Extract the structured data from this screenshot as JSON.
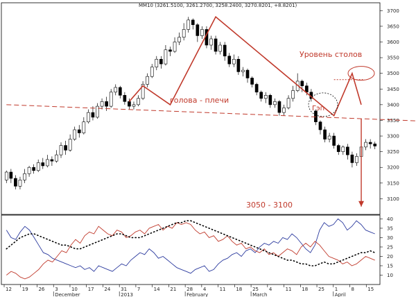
{
  "chart_data": [
    {
      "type": "candlestick",
      "header": "MM10 (3261.5100, 3261.2700, 3258.2400, 3270.8201, +8.8201)",
      "ylim": [
        3050,
        3725
      ],
      "y_ticks": [
        3100,
        3150,
        3200,
        3250,
        3300,
        3350,
        3400,
        3450,
        3500,
        3550,
        3600,
        3650,
        3700
      ],
      "candles": [
        [
          3160,
          3185,
          3150,
          3190
        ],
        [
          3185,
          3165,
          3150,
          3195
        ],
        [
          3165,
          3140,
          3130,
          3175
        ],
        [
          3140,
          3160,
          3130,
          3170
        ],
        [
          3160,
          3180,
          3150,
          3195
        ],
        [
          3180,
          3200,
          3170,
          3205
        ],
        [
          3200,
          3190,
          3180,
          3210
        ],
        [
          3190,
          3215,
          3185,
          3225
        ],
        [
          3215,
          3205,
          3195,
          3230
        ],
        [
          3205,
          3225,
          3200,
          3240
        ],
        [
          3225,
          3220,
          3205,
          3235
        ],
        [
          3220,
          3240,
          3215,
          3255
        ],
        [
          3240,
          3270,
          3230,
          3280
        ],
        [
          3270,
          3255,
          3240,
          3285
        ],
        [
          3255,
          3290,
          3250,
          3305
        ],
        [
          3290,
          3320,
          3285,
          3330
        ],
        [
          3320,
          3310,
          3295,
          3335
        ],
        [
          3310,
          3345,
          3305,
          3360
        ],
        [
          3345,
          3375,
          3340,
          3385
        ],
        [
          3375,
          3360,
          3350,
          3395
        ],
        [
          3360,
          3395,
          3355,
          3405
        ],
        [
          3395,
          3410,
          3385,
          3420
        ],
        [
          3410,
          3395,
          3380,
          3425
        ],
        [
          3395,
          3440,
          3390,
          3450
        ],
        [
          3440,
          3455,
          3430,
          3465
        ],
        [
          3455,
          3430,
          3420,
          3460
        ],
        [
          3430,
          3410,
          3400,
          3440
        ],
        [
          3410,
          3395,
          3385,
          3420
        ],
        [
          3395,
          3400,
          3385,
          3410
        ],
        [
          3400,
          3420,
          3395,
          3430
        ],
        [
          3420,
          3465,
          3415,
          3475
        ],
        [
          3465,
          3490,
          3455,
          3500
        ],
        [
          3490,
          3520,
          3485,
          3530
        ],
        [
          3520,
          3545,
          3510,
          3555
        ],
        [
          3545,
          3530,
          3515,
          3555
        ],
        [
          3530,
          3575,
          3525,
          3590
        ],
        [
          3575,
          3570,
          3555,
          3585
        ],
        [
          3570,
          3600,
          3565,
          3615
        ],
        [
          3600,
          3615,
          3590,
          3630
        ],
        [
          3615,
          3640,
          3605,
          3660
        ],
        [
          3640,
          3670,
          3630,
          3680
        ],
        [
          3670,
          3655,
          3640,
          3675
        ],
        [
          3655,
          3620,
          3600,
          3660
        ],
        [
          3620,
          3640,
          3610,
          3650
        ],
        [
          3640,
          3590,
          3580,
          3650
        ],
        [
          3590,
          3610,
          3575,
          3620
        ],
        [
          3610,
          3570,
          3560,
          3620
        ],
        [
          3570,
          3590,
          3560,
          3600
        ],
        [
          3590,
          3555,
          3540,
          3600
        ],
        [
          3555,
          3530,
          3520,
          3565
        ],
        [
          3530,
          3545,
          3520,
          3560
        ],
        [
          3545,
          3505,
          3495,
          3555
        ],
        [
          3505,
          3510,
          3490,
          3520
        ],
        [
          3510,
          3485,
          3470,
          3515
        ],
        [
          3485,
          3465,
          3455,
          3490
        ],
        [
          3465,
          3440,
          3430,
          3470
        ],
        [
          3440,
          3420,
          3410,
          3445
        ],
        [
          3420,
          3430,
          3405,
          3440
        ],
        [
          3430,
          3400,
          3390,
          3435
        ],
        [
          3400,
          3410,
          3390,
          3420
        ],
        [
          3410,
          3375,
          3365,
          3415
        ],
        [
          3375,
          3390,
          3365,
          3400
        ],
        [
          3390,
          3420,
          3385,
          3430
        ],
        [
          3420,
          3445,
          3410,
          3460
        ],
        [
          3445,
          3475,
          3440,
          3500
        ],
        [
          3475,
          3460,
          3440,
          3480
        ],
        [
          3460,
          3440,
          3430,
          3470
        ],
        [
          3440,
          3420,
          3410,
          3450
        ],
        [
          3380,
          3345,
          3335,
          3385
        ],
        [
          3345,
          3320,
          3305,
          3350
        ],
        [
          3320,
          3290,
          3280,
          3330
        ],
        [
          3290,
          3300,
          3280,
          3310
        ],
        [
          3300,
          3270,
          3260,
          3310
        ],
        [
          3270,
          3250,
          3240,
          3275
        ],
        [
          3250,
          3265,
          3240,
          3270
        ],
        [
          3265,
          3240,
          3225,
          3275
        ],
        [
          3240,
          3215,
          3200,
          3250
        ],
        [
          3215,
          3235,
          3205,
          3245
        ],
        [
          3235,
          3265,
          3225,
          3275
        ],
        [
          3265,
          3280,
          3255,
          3290
        ],
        [
          3280,
          3275,
          3260,
          3290
        ],
        [
          3275,
          3268,
          3258,
          3282
        ]
      ],
      "x_ticks": [
        "12",
        "19",
        "26",
        "3",
        "10",
        "17",
        "24",
        "31",
        "7",
        "14",
        "21",
        "28",
        "4",
        "11",
        "18",
        "25",
        "4",
        "11",
        "18",
        "25",
        "1",
        "8",
        "15"
      ],
      "month_labels": [
        "December",
        "2013",
        "February",
        "March",
        "April"
      ],
      "annotations": {
        "head_shoulders": "голова - плечи",
        "pillar_level": "Уровень столов",
        "gap": "Гэп",
        "target": "3050 - 3100"
      },
      "neckline": [
        [
          0,
          3400
        ],
        [
          96,
          3345
        ]
      ],
      "pattern_path": [
        [
          27,
          3410
        ],
        [
          30,
          3460
        ],
        [
          36,
          3400
        ],
        [
          46,
          3680
        ],
        [
          72,
          3365
        ],
        [
          76,
          3500
        ],
        [
          78,
          3400
        ]
      ],
      "pillar_level_value": 3480,
      "target_arrow": {
        "x": 78,
        "from": 3355,
        "to": 3075
      }
    },
    {
      "type": "line",
      "ylim": [
        5,
        42
      ],
      "y_ticks": [
        10,
        15,
        20,
        25,
        30,
        35,
        40
      ],
      "series": [
        {
          "values": [
            34,
            30,
            29,
            33,
            36,
            34,
            30,
            26,
            22,
            21,
            19,
            18,
            17,
            16,
            15,
            14,
            15,
            13,
            14,
            12,
            15,
            14,
            13,
            12,
            14,
            16,
            15,
            18,
            20,
            22,
            21,
            24,
            22,
            19,
            20,
            18,
            16,
            14,
            13,
            12,
            11,
            13,
            14,
            15,
            12,
            13,
            16,
            18,
            19,
            21,
            22,
            20,
            23,
            24,
            22,
            25,
            27,
            26,
            28,
            27,
            30,
            29,
            32,
            30,
            27,
            24,
            22,
            26,
            34,
            38,
            36,
            37,
            40,
            38,
            34,
            36,
            39,
            37,
            34,
            33,
            32
          ]
        },
        {
          "values": [
            10,
            12,
            11,
            9,
            8,
            9,
            11,
            13,
            16,
            18,
            17,
            20,
            23,
            22,
            26,
            29,
            27,
            31,
            33,
            32,
            36,
            34,
            32,
            31,
            34,
            33,
            30,
            31,
            33,
            34,
            32,
            35,
            36,
            37,
            34,
            36,
            35,
            38,
            37,
            38,
            37,
            34,
            32,
            33,
            30,
            31,
            28,
            29,
            31,
            28,
            26,
            27,
            24,
            25,
            23,
            22,
            24,
            21,
            22,
            20,
            22,
            24,
            23,
            21,
            25,
            27,
            25,
            28,
            26,
            23,
            20,
            19,
            18,
            16,
            17,
            15,
            16,
            18,
            20,
            19,
            18
          ]
        },
        {
          "style": "dotted",
          "values": [
            24,
            26,
            28,
            30,
            31,
            32,
            32,
            31,
            30,
            29,
            28,
            27,
            26,
            26,
            25,
            24,
            24,
            25,
            26,
            27,
            28,
            29,
            30,
            31,
            32,
            32,
            31,
            30,
            30,
            30,
            31,
            32,
            33,
            34,
            35,
            36,
            37,
            38,
            38,
            39,
            39,
            38,
            37,
            36,
            35,
            34,
            33,
            32,
            31,
            30,
            29,
            28,
            27,
            26,
            25,
            24,
            23,
            22,
            21,
            20,
            19,
            18,
            18,
            17,
            16,
            16,
            15,
            15,
            16,
            17,
            16,
            16,
            17,
            18,
            19,
            20,
            21,
            22,
            22,
            23,
            22
          ]
        }
      ]
    }
  ]
}
